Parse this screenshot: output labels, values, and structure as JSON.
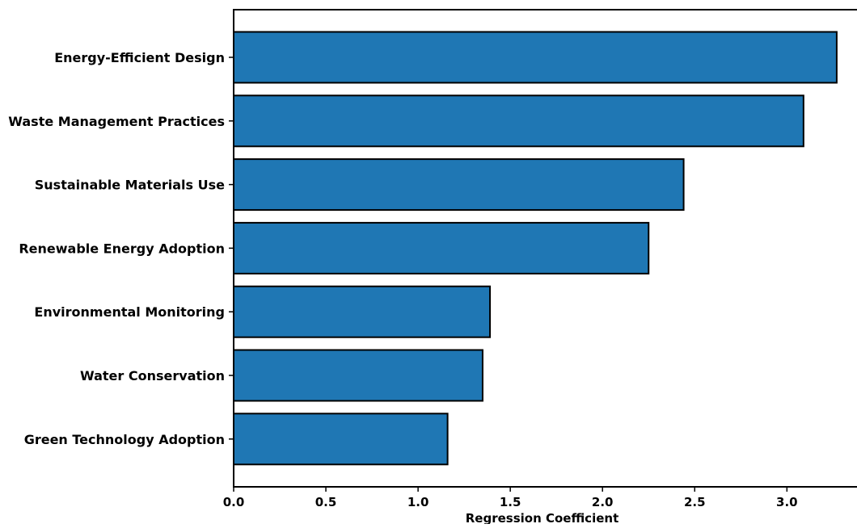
{
  "chart_data": {
    "type": "bar",
    "orientation": "horizontal",
    "categories": [
      "Energy-Efficient Design",
      "Waste Management Practices",
      "Sustainable Materials Use",
      "Renewable Energy Adoption",
      "Environmental Monitoring",
      "Water Conservation",
      "Green Technology Adoption"
    ],
    "values": [
      3.27,
      3.09,
      2.44,
      2.25,
      1.39,
      1.35,
      1.16
    ],
    "xlabel": "Regression Coefficient",
    "ylabel": "",
    "title": "",
    "xlim": [
      0,
      3.38
    ],
    "xticks": [
      {
        "value": 0.0,
        "label": "0.0"
      },
      {
        "value": 0.5,
        "label": "0.5"
      },
      {
        "value": 1.0,
        "label": "1.0"
      },
      {
        "value": 1.5,
        "label": "1.5"
      },
      {
        "value": 2.0,
        "label": "2.0"
      },
      {
        "value": 2.5,
        "label": "2.5"
      },
      {
        "value": 3.0,
        "label": "3.0"
      }
    ],
    "grid": false,
    "legend": "none",
    "colors": {
      "bar_fill": "#1f77b4",
      "bar_edge": "#000000",
      "axis": "#000000"
    }
  }
}
